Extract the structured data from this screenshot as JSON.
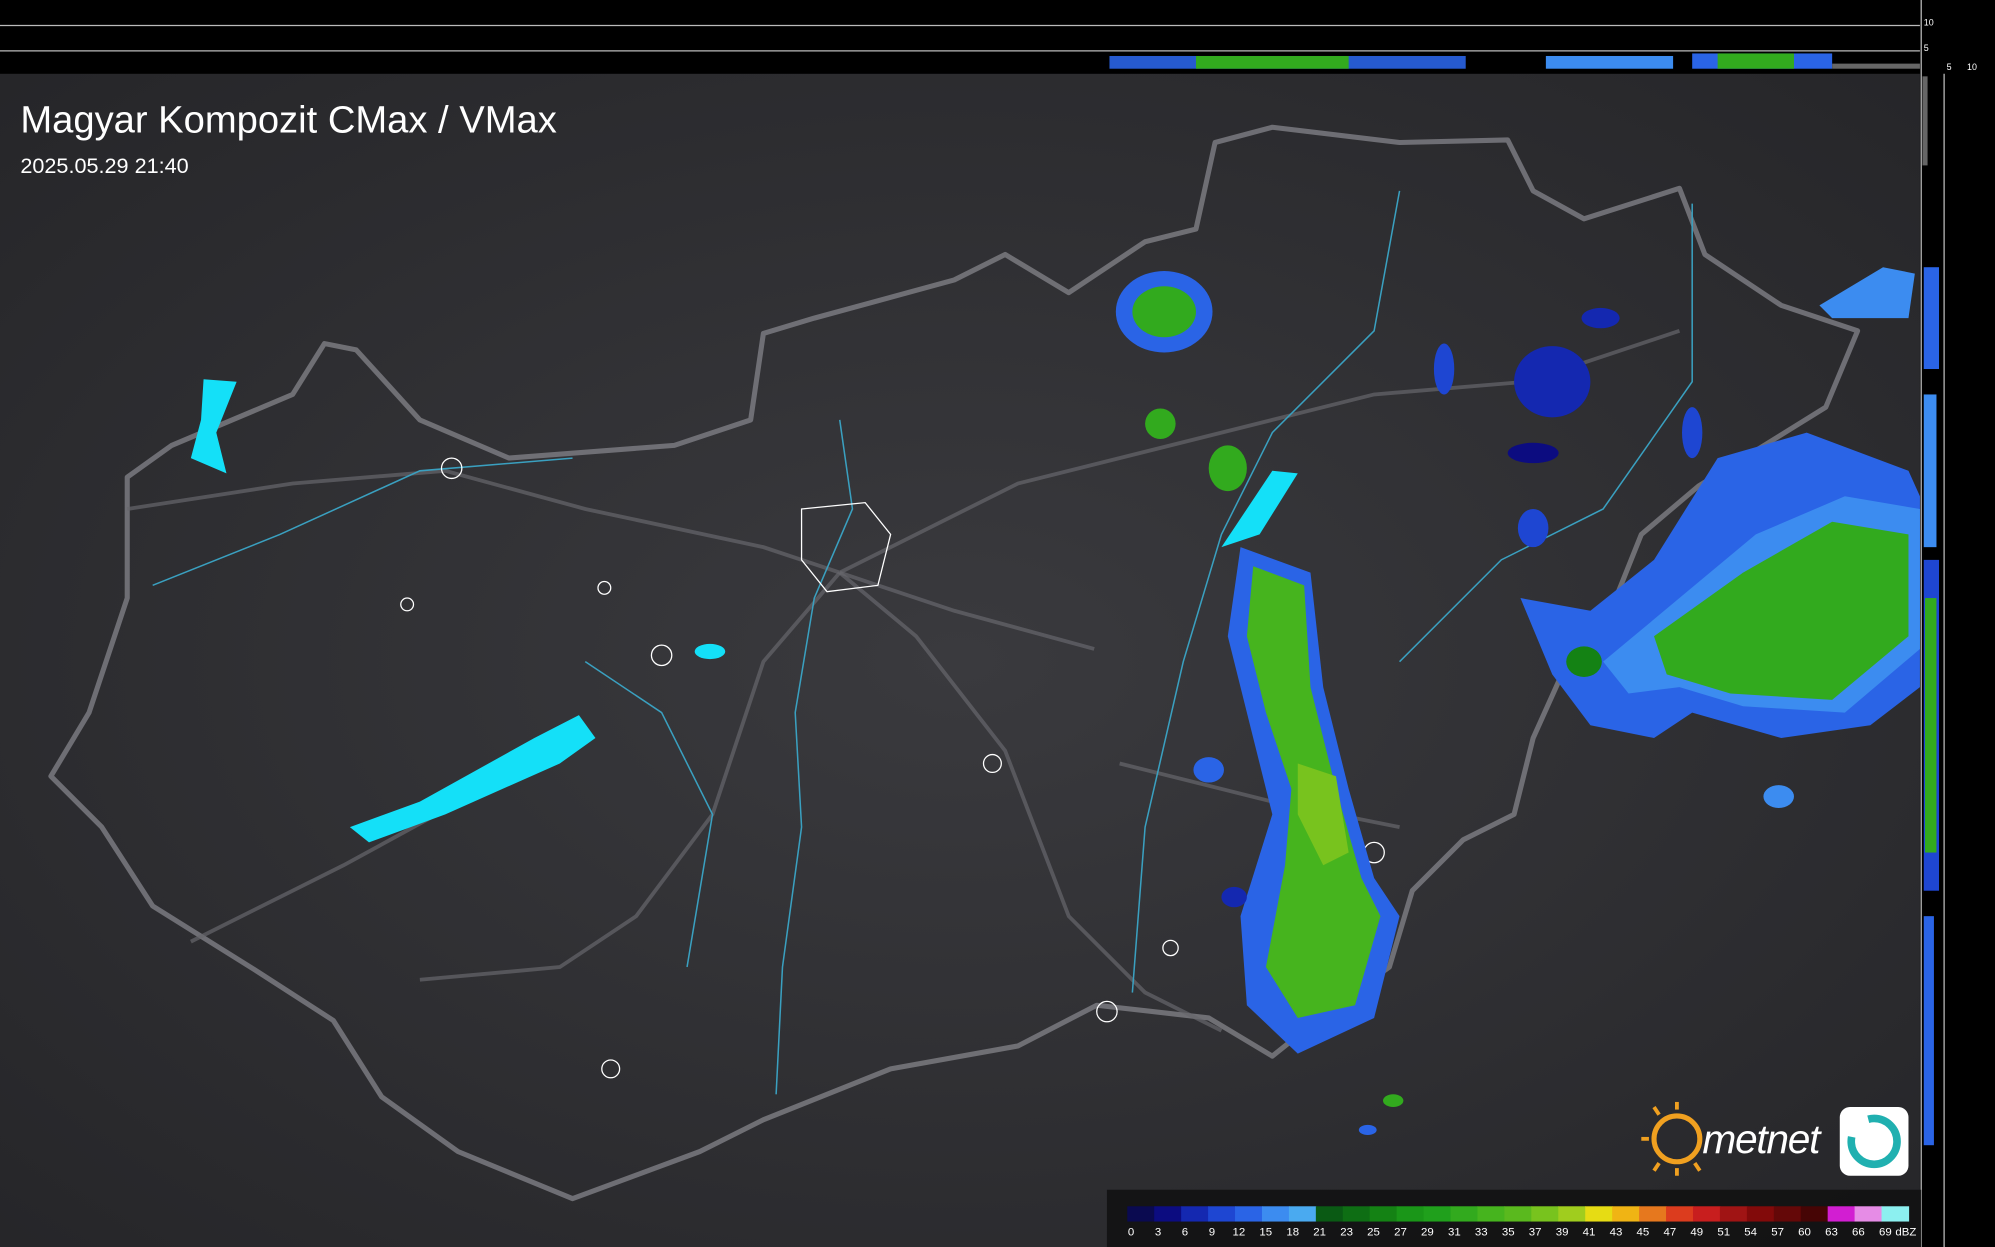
{
  "header": {
    "title": "Magyar Kompozit CMax / VMax",
    "timestamp": "2025.05.29 21:40"
  },
  "profile_axes": {
    "top": [
      10,
      5
    ],
    "side": [
      5,
      10
    ]
  },
  "legend": {
    "levels": [
      0,
      3,
      6,
      9,
      12,
      15,
      18,
      21,
      23,
      25,
      27,
      29,
      31,
      33,
      35,
      37,
      39,
      41,
      43,
      45,
      47,
      49,
      51,
      54,
      57,
      60,
      63,
      66,
      69
    ],
    "colors": [
      "#0a0a50",
      "#0c0c80",
      "#1428b0",
      "#1e46d2",
      "#2a64e6",
      "#3c8cf0",
      "#4aaaf0",
      "#0a5a14",
      "#0e6e14",
      "#148214",
      "#1a9618",
      "#20a01c",
      "#32aa1e",
      "#46b41e",
      "#5ab91e",
      "#78c31e",
      "#a0cd1e",
      "#e6dc14",
      "#f0b414",
      "#e6781e",
      "#dc3c1e",
      "#c81e1e",
      "#a01414",
      "#820a0a",
      "#640808",
      "#460505",
      "#d21ed2",
      "#e68ce6",
      "#8cf0f0"
    ],
    "unit": "dBZ"
  },
  "logo": {
    "text": "metnet"
  }
}
